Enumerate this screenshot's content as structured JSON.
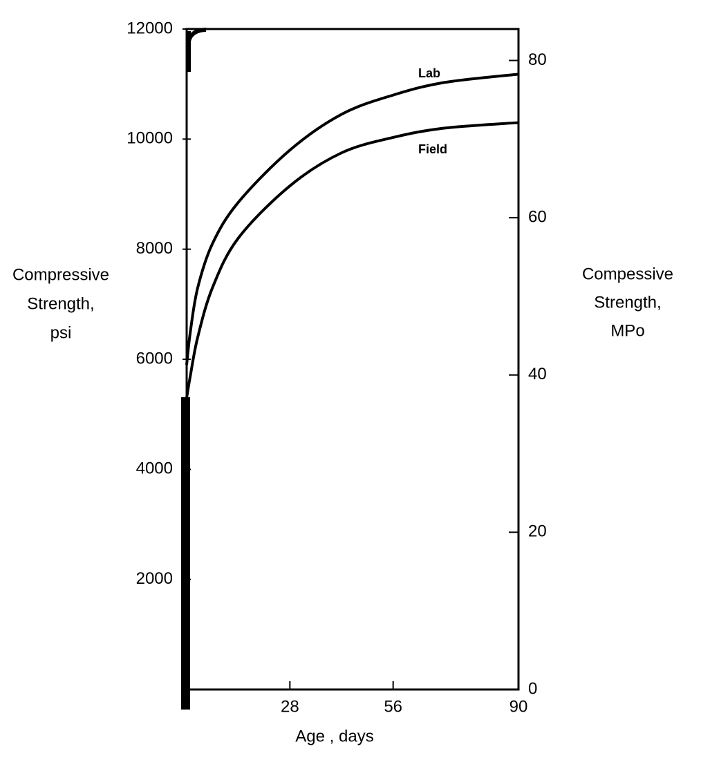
{
  "chart_data": {
    "type": "line",
    "x": [
      0,
      1,
      3,
      7,
      14,
      28,
      42,
      56,
      70,
      90
    ],
    "series": [
      {
        "name": "Lab",
        "color": "#000000",
        "values": [
          5900,
          6500,
          7300,
          8100,
          8850,
          9800,
          10450,
          10800,
          11030,
          11180
        ]
      },
      {
        "name": "Field",
        "color": "#000000",
        "values": [
          5300,
          5700,
          6400,
          7300,
          8200,
          9150,
          9750,
          10030,
          10200,
          10300
        ]
      }
    ],
    "xlim": [
      0,
      90
    ],
    "xticks": [
      28,
      56,
      90
    ],
    "ylim": [
      0,
      12000
    ],
    "yticks": [
      2000,
      4000,
      6000,
      8000,
      10000,
      12000
    ],
    "y2lim": [
      0,
      84
    ],
    "y2ticks": [
      0,
      20,
      40,
      60,
      80
    ],
    "xlabel": "Age , days",
    "ylabel": [
      "Compressive",
      "Strength,",
      "psi"
    ],
    "y2label": [
      "Compessive",
      "Strength,",
      "MPo"
    ],
    "grid": false
  }
}
